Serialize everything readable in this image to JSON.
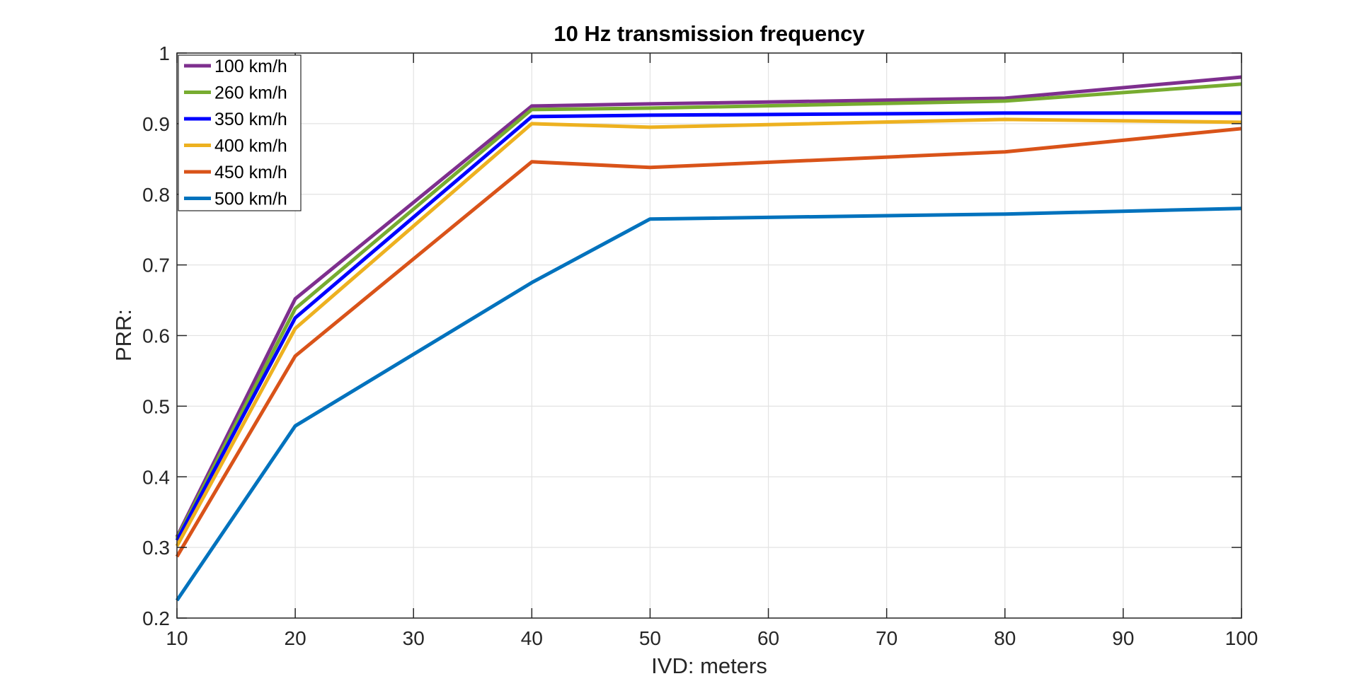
{
  "chart_data": {
    "type": "line",
    "title": "10 Hz transmission frequency",
    "xlabel": "IVD: meters",
    "ylabel": "PRR:",
    "xlim": [
      10,
      100
    ],
    "ylim": [
      0.2,
      1
    ],
    "xticks": [
      10,
      20,
      30,
      40,
      50,
      60,
      70,
      80,
      90,
      100
    ],
    "yticks": [
      0.2,
      0.3,
      0.4,
      0.5,
      0.6,
      0.7,
      0.8,
      0.9,
      1
    ],
    "ytick_labels": [
      "0.2",
      "0.3",
      "0.4",
      "0.5",
      "0.6",
      "0.7",
      "0.8",
      "0.9",
      "1"
    ],
    "grid": true,
    "legend_position": "top-left",
    "x": [
      10,
      20,
      40,
      50,
      80,
      100
    ],
    "series": [
      {
        "name": "100 km/h",
        "color": "#7E2F8E",
        "values": [
          0.315,
          0.652,
          0.925,
          0.928,
          0.936,
          0.966
        ]
      },
      {
        "name": "260 km/h",
        "color": "#77AC30",
        "values": [
          0.313,
          0.638,
          0.92,
          0.922,
          0.932,
          0.956
        ]
      },
      {
        "name": "350 km/h",
        "color": "#0000FF",
        "values": [
          0.31,
          0.625,
          0.91,
          0.912,
          0.915,
          0.915
        ]
      },
      {
        "name": "400 km/h",
        "color": "#EDB120",
        "values": [
          0.302,
          0.61,
          0.9,
          0.895,
          0.906,
          0.902
        ]
      },
      {
        "name": "450 km/h",
        "color": "#D95319",
        "values": [
          0.287,
          0.571,
          0.846,
          0.838,
          0.86,
          0.893
        ]
      },
      {
        "name": "500 km/h",
        "color": "#0072BD",
        "values": [
          0.225,
          0.472,
          0.675,
          0.765,
          0.772,
          0.78
        ]
      }
    ]
  }
}
